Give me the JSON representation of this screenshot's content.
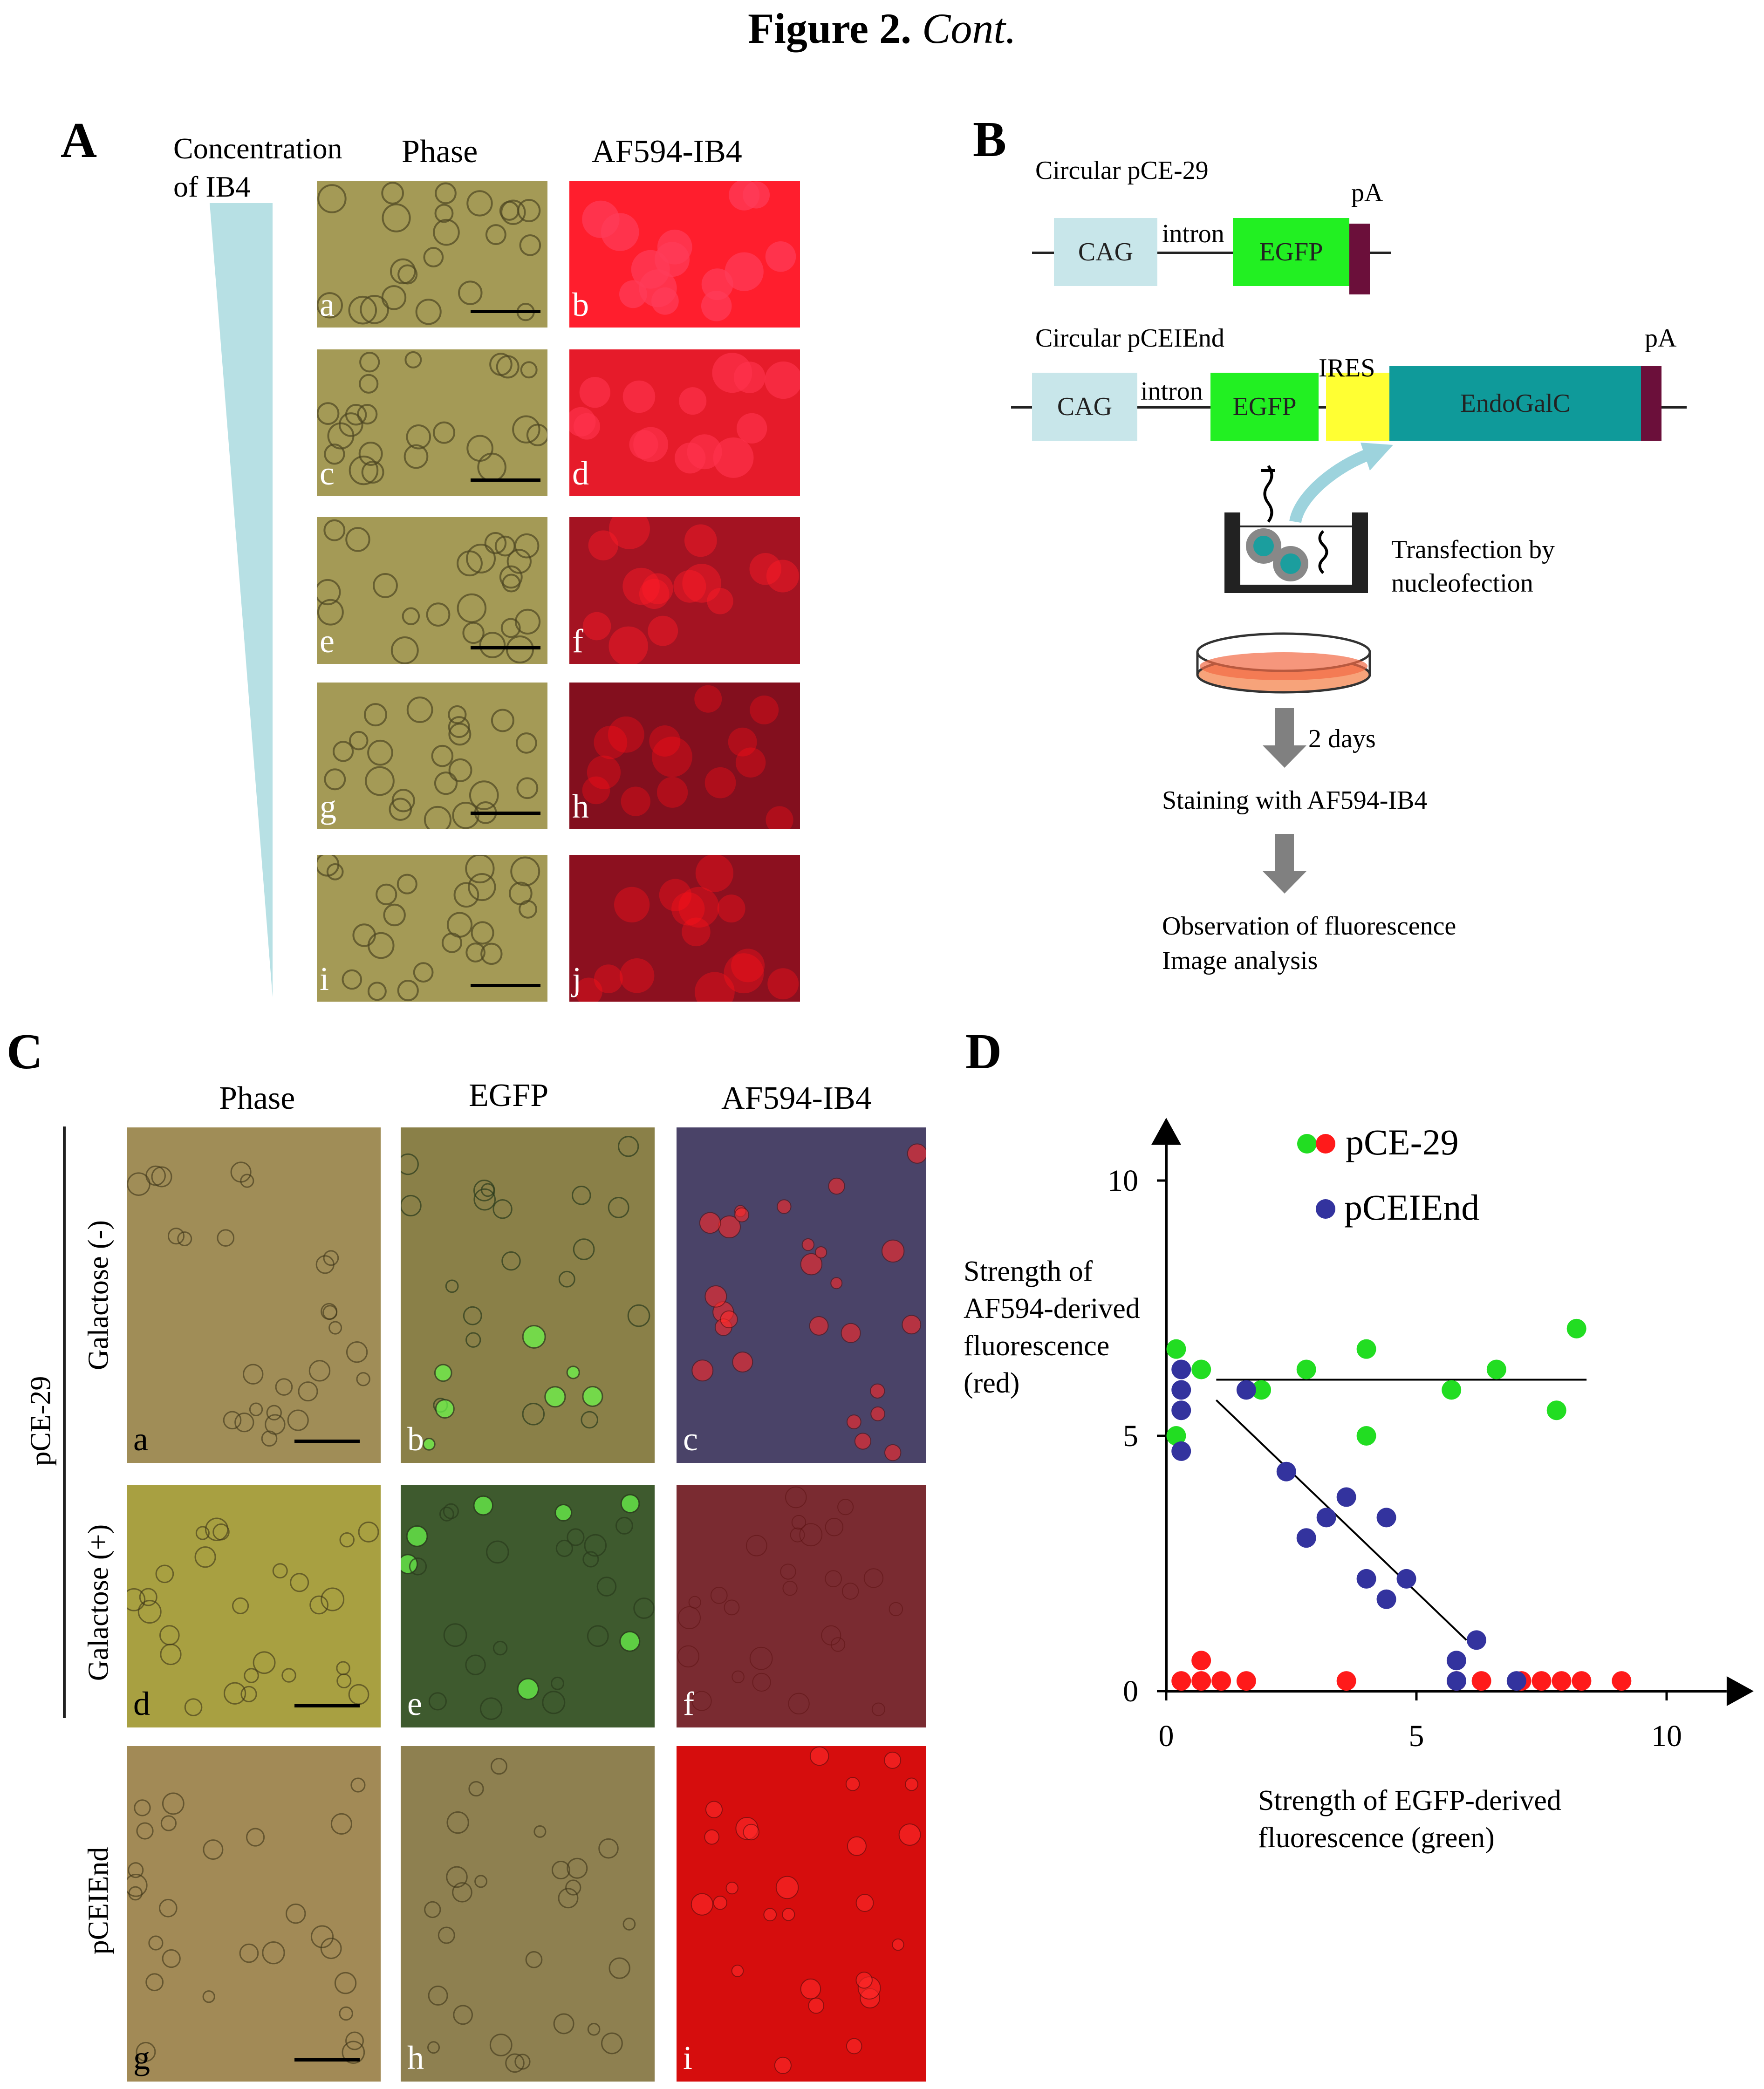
{
  "figure": {
    "title_bold": "Figure 2.",
    "title_italic": "Cont."
  },
  "panel_a": {
    "letter": "A",
    "concentration_label": "Concentration",
    "concentration_label2": "of IB4",
    "col_phase": "Phase",
    "col_af": "AF594-IB4",
    "rows": [
      {
        "left": "a",
        "right": "b",
        "red_intensity": 1.0
      },
      {
        "left": "c",
        "right": "d",
        "red_intensity": 0.85
      },
      {
        "left": "e",
        "right": "f",
        "red_intensity": 0.45
      },
      {
        "left": "g",
        "right": "h",
        "red_intensity": 0.25
      },
      {
        "left": "i",
        "right": "j",
        "red_intensity": 0.3
      }
    ]
  },
  "panel_b": {
    "letter": "B",
    "construct1_name": "Circular pCE-29",
    "construct2_name": "Circular pCEIEnd",
    "cag": "CAG",
    "intron": "intron",
    "egfp": "EGFP",
    "pa": "pA",
    "ires": "IRES",
    "endogalc": "EndoGalC",
    "transfection1": "Transfection by",
    "transfection2": "nucleofection",
    "days": "2 days",
    "staining": "Staining with AF594-IB4",
    "observation1": "Observation of fluorescence",
    "observation2": "Image analysis",
    "colors": {
      "cag": "#c8e6ea",
      "egfp": "#22f022",
      "ires": "#ffff33",
      "endogalc": "#0f9a9a",
      "pa": "#6b0f3a"
    }
  },
  "panel_c": {
    "letter": "C",
    "col_phase": "Phase",
    "col_egfp": "EGFP",
    "col_af": "AF594-IB4",
    "group_label": "pCE-29",
    "row1_label": "Galactose (-)",
    "row2_label": "Galactose (+)",
    "row3_label": "pCEIEnd",
    "sub": [
      "a",
      "b",
      "c",
      "d",
      "e",
      "f",
      "g",
      "h",
      "i"
    ]
  },
  "panel_d": {
    "letter": "D",
    "ylabel1": "Strength of",
    "ylabel2": "AF594-derived",
    "ylabel3": "fluorescence",
    "ylabel4": "(red)",
    "xlabel1": "Strength of EGFP-derived",
    "xlabel2": "fluorescence (green)"
  },
  "chart_data": {
    "type": "scatter",
    "xlim": [
      0,
      11
    ],
    "ylim": [
      0,
      11
    ],
    "x_ticks": [
      0,
      5,
      10
    ],
    "y_ticks": [
      0,
      5,
      10
    ],
    "x_tick_labels": [
      "0",
      "5",
      "10"
    ],
    "y_tick_labels": [
      "0",
      "5",
      "10"
    ],
    "legend": {
      "label1": "pCE-29",
      "label2": "pCEIEnd"
    },
    "series": [
      {
        "color": "#22dd22",
        "points": [
          [
            0.2,
            6.7
          ],
          [
            0.2,
            5.0
          ],
          [
            0.7,
            6.3
          ],
          [
            1.9,
            5.9
          ],
          [
            2.8,
            6.3
          ],
          [
            4.0,
            6.7
          ],
          [
            4.0,
            5.0
          ],
          [
            5.7,
            5.9
          ],
          [
            6.6,
            6.3
          ],
          [
            7.8,
            5.5
          ],
          [
            8.2,
            7.1
          ]
        ]
      },
      {
        "color": "#ff1a1a",
        "points": [
          [
            0.3,
            0.2
          ],
          [
            0.7,
            0.6
          ],
          [
            0.7,
            0.2
          ],
          [
            1.1,
            0.2
          ],
          [
            1.6,
            0.2
          ],
          [
            3.6,
            0.2
          ],
          [
            5.8,
            0.2
          ],
          [
            6.3,
            0.2
          ],
          [
            7.1,
            0.2
          ],
          [
            7.5,
            0.2
          ],
          [
            7.9,
            0.2
          ],
          [
            8.3,
            0.2
          ],
          [
            9.1,
            0.2
          ]
        ]
      },
      {
        "color": "#33339e",
        "points": [
          [
            0.3,
            6.3
          ],
          [
            0.3,
            5.9
          ],
          [
            0.3,
            5.5
          ],
          [
            0.3,
            4.7
          ],
          [
            1.6,
            5.9
          ],
          [
            2.4,
            4.3
          ],
          [
            2.8,
            3.0
          ],
          [
            3.2,
            3.4
          ],
          [
            3.6,
            3.8
          ],
          [
            4.0,
            2.2
          ],
          [
            4.4,
            1.8
          ],
          [
            4.4,
            3.4
          ],
          [
            4.8,
            2.2
          ],
          [
            5.8,
            0.6
          ],
          [
            5.8,
            0.2
          ],
          [
            6.2,
            1.0
          ],
          [
            7.0,
            0.2
          ]
        ]
      }
    ],
    "lines": [
      {
        "from": [
          1.0,
          6.1
        ],
        "to": [
          8.4,
          6.1
        ]
      },
      {
        "from": [
          1.0,
          5.7
        ],
        "to": [
          6.0,
          1.0
        ]
      }
    ]
  }
}
